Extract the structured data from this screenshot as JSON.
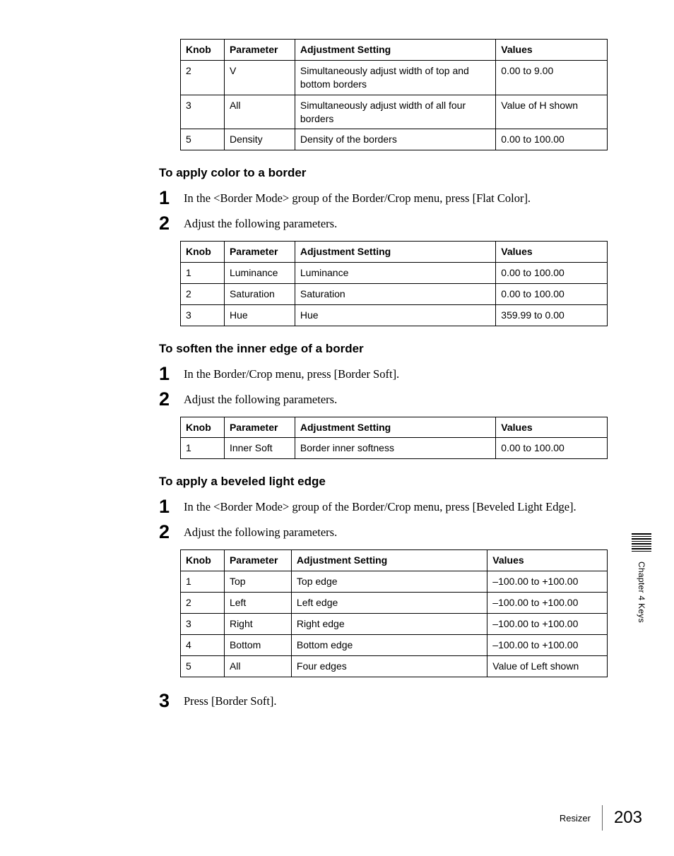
{
  "table1": {
    "headers": [
      "Knob",
      "Parameter",
      "Adjustment Setting",
      "Values"
    ],
    "rows": [
      [
        "2",
        "V",
        "Simultaneously adjust width of top and bottom borders",
        "0.00 to 9.00"
      ],
      [
        "3",
        "All",
        "Simultaneously adjust width of all four borders",
        "Value of H shown"
      ],
      [
        "5",
        "Density",
        "Density of the borders",
        "0.00 to 100.00"
      ]
    ]
  },
  "section_color": {
    "heading": "To apply color to a border",
    "steps": [
      "In the <Border Mode> group of the Border/Crop menu, press [Flat Color].",
      "Adjust the following parameters."
    ],
    "table": {
      "headers": [
        "Knob",
        "Parameter",
        "Adjustment Setting",
        "Values"
      ],
      "rows": [
        [
          "1",
          "Luminance",
          "Luminance",
          "0.00 to 100.00"
        ],
        [
          "2",
          "Saturation",
          "Saturation",
          "0.00 to 100.00"
        ],
        [
          "3",
          "Hue",
          "Hue",
          "359.99 to 0.00"
        ]
      ]
    }
  },
  "section_soften": {
    "heading": "To soften the inner edge of a border",
    "steps": [
      "In the Border/Crop menu, press [Border Soft].",
      "Adjust the following parameters."
    ],
    "table": {
      "headers": [
        "Knob",
        "Parameter",
        "Adjustment Setting",
        "Values"
      ],
      "rows": [
        [
          "1",
          "Inner Soft",
          "Border inner softness",
          "0.00 to 100.00"
        ]
      ]
    }
  },
  "section_bevel": {
    "heading": "To apply a beveled light edge",
    "steps": [
      "In the <Border Mode> group of the Border/Crop menu, press [Beveled Light Edge].",
      "Adjust the following parameters."
    ],
    "table": {
      "headers": [
        "Knob",
        "Parameter",
        "Adjustment Setting",
        "Values"
      ],
      "rows": [
        [
          "1",
          "Top",
          "Top edge",
          "–100.00 to +100.00"
        ],
        [
          "2",
          "Left",
          "Left edge",
          "–100.00 to +100.00"
        ],
        [
          "3",
          "Right",
          "Right edge",
          "–100.00 to +100.00"
        ],
        [
          "4",
          "Bottom",
          "Bottom edge",
          "–100.00 to +100.00"
        ],
        [
          "5",
          "All",
          "Four edges",
          "Value of Left shown"
        ]
      ]
    },
    "step3": "Press [Border Soft]."
  },
  "side_label": "Chapter 4  Keys",
  "footer": {
    "section": "Resizer",
    "page": "203"
  }
}
